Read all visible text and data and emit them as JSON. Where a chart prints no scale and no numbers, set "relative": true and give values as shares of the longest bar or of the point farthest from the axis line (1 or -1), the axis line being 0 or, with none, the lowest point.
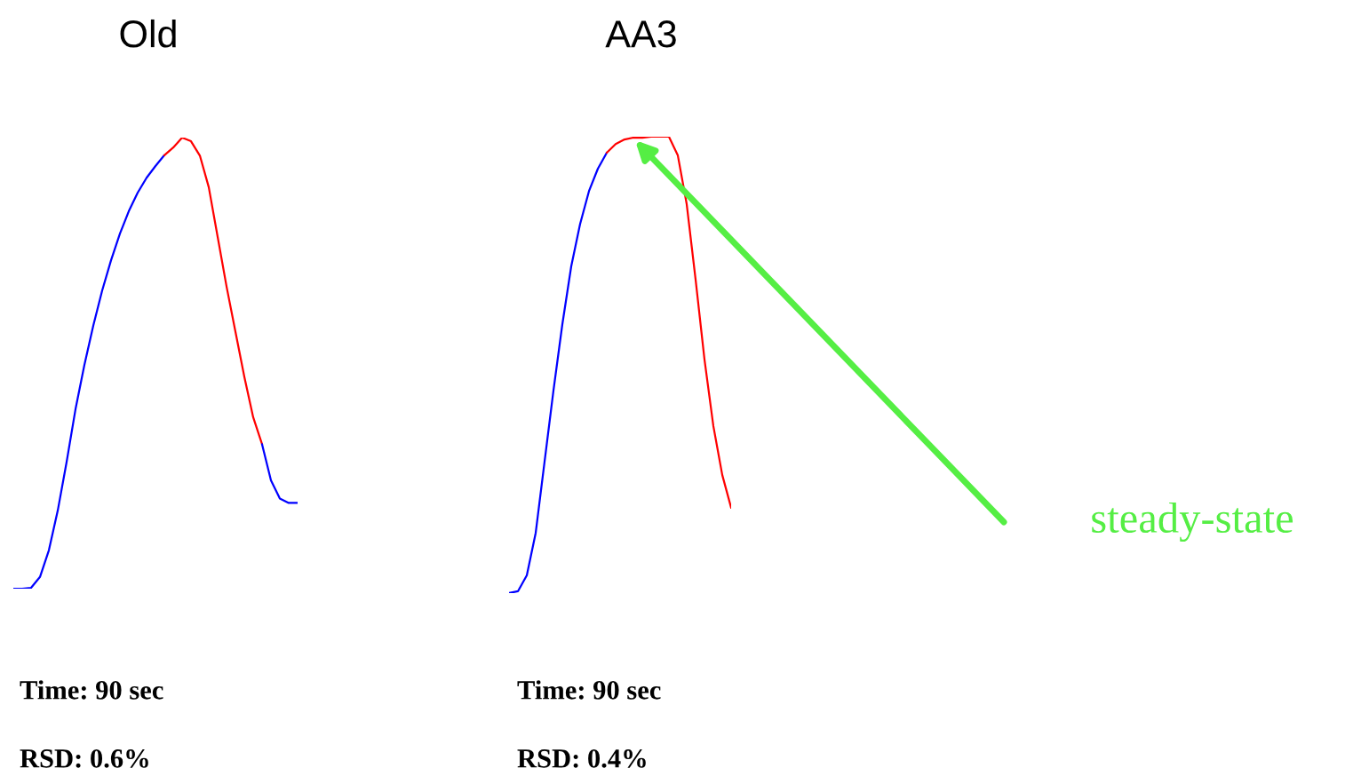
{
  "chart_data": [
    {
      "type": "line",
      "title": "Old",
      "relative": true,
      "categories": [
        null,
        null,
        null,
        null,
        null,
        null,
        null,
        null,
        null,
        null,
        null,
        null,
        null,
        null,
        null,
        null,
        null,
        null,
        null,
        null,
        null,
        null,
        null,
        null,
        null,
        null,
        null,
        null,
        null,
        null,
        null,
        null,
        null
      ],
      "series": [
        {
          "color": "#0000ff",
          "values": [
            0,
            0,
            0.002,
            0.026,
            0.085,
            0.173,
            0.281,
            0.398,
            0.496,
            0.583,
            0.661,
            0.728,
            0.787,
            0.837,
            0.878,
            0.911,
            0.937,
            0.961,
            null,
            null,
            null,
            null,
            null,
            null,
            null,
            null,
            null,
            null,
            null,
            null,
            null,
            null,
            null
          ]
        },
        {
          "color": "#ff0000",
          "values": [
            null,
            null,
            null,
            null,
            null,
            null,
            null,
            null,
            null,
            null,
            null,
            null,
            null,
            null,
            null,
            null,
            null,
            0.961,
            0.978,
            1,
            0.992,
            0.96,
            0.89,
            0.78,
            0.67,
            0.57,
            0.47,
            0.38,
            0.32,
            null,
            null,
            null,
            null
          ]
        },
        {
          "color": "#0000ff",
          "values": [
            null,
            null,
            null,
            null,
            null,
            null,
            null,
            null,
            null,
            null,
            null,
            null,
            null,
            null,
            null,
            null,
            null,
            null,
            null,
            null,
            null,
            null,
            null,
            null,
            null,
            null,
            null,
            null,
            0.32,
            0.24,
            0.2,
            0.19,
            0.19
          ]
        }
      ],
      "annotations": [
        "Time: 90 sec",
        "RSD: 0.6%"
      ]
    },
    {
      "type": "line",
      "title": "AA3",
      "relative": true,
      "categories": [
        null,
        null,
        null,
        null,
        null,
        null,
        null,
        null,
        null,
        null,
        null,
        null,
        null,
        null,
        null,
        null,
        null,
        null,
        null,
        null,
        null,
        null,
        null,
        null,
        null,
        null
      ],
      "series": [
        {
          "color": "#0000ff",
          "values": [
            0,
            0.004,
            0.039,
            0.132,
            0.288,
            0.444,
            0.589,
            0.716,
            0.809,
            0.881,
            0.93,
            0.965,
            null,
            null,
            null,
            null,
            null,
            null,
            null,
            null,
            null,
            null,
            null,
            null,
            null,
            null
          ]
        },
        {
          "color": "#ff0000",
          "values": [
            null,
            null,
            null,
            null,
            null,
            null,
            null,
            null,
            null,
            null,
            null,
            0.965,
            0.984,
            0.994,
            0.998,
            0.998,
            1,
            1,
            1,
            0.959,
            0.852,
            0.687,
            0.512,
            0.366,
            0.259,
            0.187
          ]
        }
      ],
      "annotations": [
        "Time: 90 sec",
        "RSD: 0.4%",
        "steady-state"
      ]
    }
  ]
}
